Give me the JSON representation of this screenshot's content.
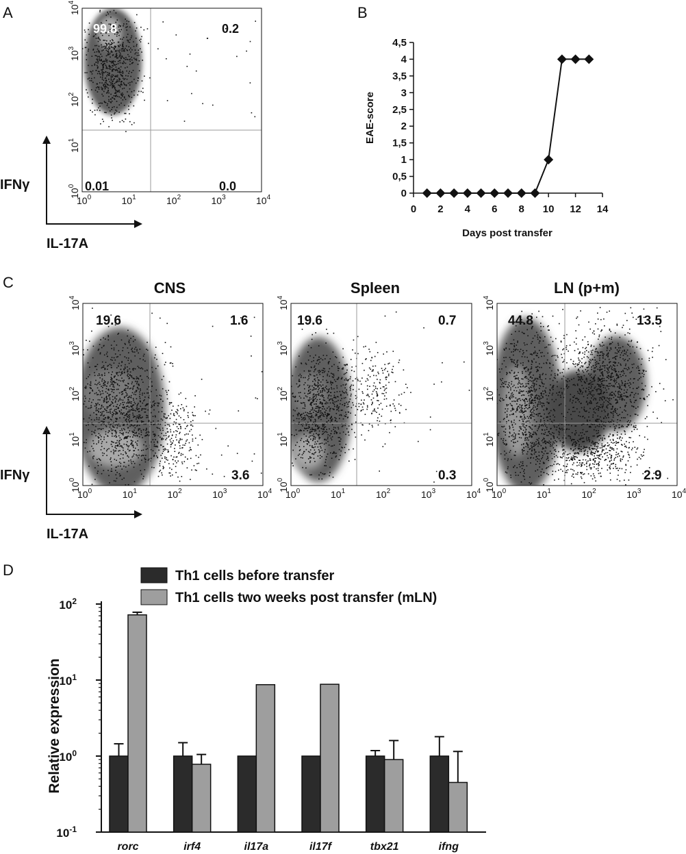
{
  "panel_letters": [
    "A",
    "B",
    "C",
    "D"
  ],
  "colors": {
    "axis": "#111111",
    "dense": "#5e5e5e",
    "core": "#a8a8a8",
    "dot": "#111111",
    "gate": "#9a9a9a",
    "bar_dark": "#2b2b2b",
    "bar_light": "#9e9e9e"
  },
  "flow_common": {
    "x_label": "IL-17A",
    "y_label": "IFNγ",
    "ticks": [
      {
        "base": "10",
        "exp": "0"
      },
      {
        "base": "10",
        "exp": "1"
      },
      {
        "base": "10",
        "exp": "2"
      },
      {
        "base": "10",
        "exp": "3"
      },
      {
        "base": "10",
        "exp": "4"
      }
    ]
  },
  "chart_data": [
    {
      "type": "scatter",
      "panel": "A",
      "title": "",
      "xlabel": "IL-17A",
      "ylabel": "IFNγ",
      "scale": "log",
      "xlim": [
        1,
        10000
      ],
      "ylim": [
        1,
        10000
      ],
      "quadrant_percentages": {
        "upper_left": "99.8",
        "upper_right": "0.2",
        "lower_left": "0.01",
        "lower_right": "0.0"
      }
    },
    {
      "type": "line",
      "panel": "B",
      "xlabel": "Days post transfer",
      "ylabel": "EAE-score",
      "xlim": [
        0,
        14
      ],
      "ylim": [
        0,
        4.5
      ],
      "x_ticks": [
        "0",
        "2",
        "4",
        "6",
        "8",
        "10",
        "12",
        "14"
      ],
      "y_ticks": [
        "0",
        "0,5",
        "1",
        "1,5",
        "2",
        "2,5",
        "3",
        "3,5",
        "4",
        "4,5"
      ],
      "x": [
        1,
        2,
        3,
        4,
        5,
        6,
        7,
        8,
        9,
        10,
        11,
        12,
        13
      ],
      "y": [
        0,
        0,
        0,
        0,
        0,
        0,
        0,
        0,
        0,
        1,
        4,
        4,
        4
      ]
    },
    {
      "type": "scatter",
      "panel": "C",
      "title": "CNS",
      "xlabel": "IL-17A",
      "ylabel": "IFNγ",
      "scale": "log",
      "xlim": [
        1,
        10000
      ],
      "ylim": [
        1,
        10000
      ],
      "quadrant_percentages": {
        "upper_left": "19.6",
        "upper_right": "1.6",
        "lower_right": "3.6"
      }
    },
    {
      "type": "scatter",
      "panel": "C",
      "title": "Spleen",
      "scale": "log",
      "xlim": [
        1,
        10000
      ],
      "ylim": [
        1,
        10000
      ],
      "quadrant_percentages": {
        "upper_left": "19.6",
        "upper_right": "0.7",
        "lower_right": "0.3"
      }
    },
    {
      "type": "scatter",
      "panel": "C",
      "title": "LN (p+m)",
      "scale": "log",
      "xlim": [
        1,
        10000
      ],
      "ylim": [
        1,
        10000
      ],
      "quadrant_percentages": {
        "upper_left": "44.8",
        "upper_right": "13.5",
        "lower_right": "2.9"
      }
    },
    {
      "type": "bar",
      "panel": "D",
      "ylabel": "Relative expression",
      "yscale": "log",
      "ylim": [
        0.1,
        100
      ],
      "y_ticks": [
        {
          "base": "10",
          "exp": "-1"
        },
        {
          "base": "10",
          "exp": "0"
        },
        {
          "base": "10",
          "exp": "1"
        },
        {
          "base": "10",
          "exp": "2"
        }
      ],
      "categories": [
        "rorc",
        "irf4",
        "il17a",
        "il17f",
        "tbx21",
        "ifng"
      ],
      "series": [
        {
          "name": "Th1 cells before transfer",
          "values": [
            1.0,
            1.0,
            1.0,
            1.0,
            1.0,
            1.0
          ],
          "error_upper": [
            1.45,
            1.5,
            1.0,
            1.0,
            1.18,
            1.8
          ]
        },
        {
          "name": "Th1 cells two weeks post transfer (mLN)",
          "values": [
            72,
            0.78,
            8.7,
            8.8,
            0.9,
            0.45
          ],
          "error_upper": [
            78,
            1.05,
            8.7,
            8.8,
            1.6,
            1.15
          ]
        }
      ]
    }
  ]
}
